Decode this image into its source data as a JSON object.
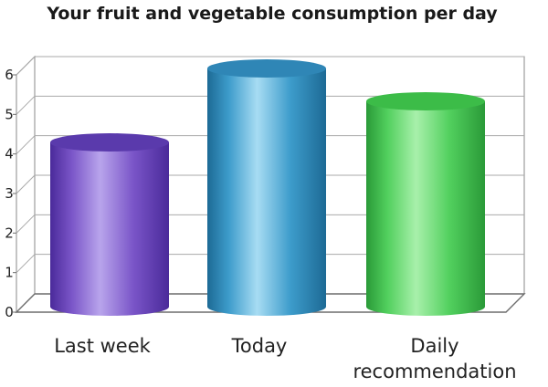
{
  "chart_data": {
    "type": "bar",
    "title": "Your fruit and vegetable consumption per day",
    "categories": [
      "Last week",
      "Today",
      "Daily recommendation"
    ],
    "category_lines": [
      [
        "Last week"
      ],
      [
        "Today"
      ],
      [
        "Daily",
        "recommendation"
      ]
    ],
    "values": [
      4,
      5.8,
      5
    ],
    "ylim": [
      0,
      6
    ],
    "yticks": [
      "0",
      "1",
      "2",
      "3",
      "4",
      "5",
      "6"
    ],
    "grid": true,
    "legend": "none",
    "style": "3d-cylinder",
    "colors": [
      {
        "dark": "#4a2a9a",
        "mid": "#7a55c8",
        "light": "#b8a4ec",
        "top": "#5a3aac"
      },
      {
        "dark": "#1d6a95",
        "mid": "#3d9ccb",
        "light": "#a7dcf3",
        "top": "#2f86b6"
      },
      {
        "dark": "#2a9a38",
        "mid": "#52d05e",
        "light": "#a8f0ab",
        "top": "#3cbc48"
      }
    ]
  }
}
